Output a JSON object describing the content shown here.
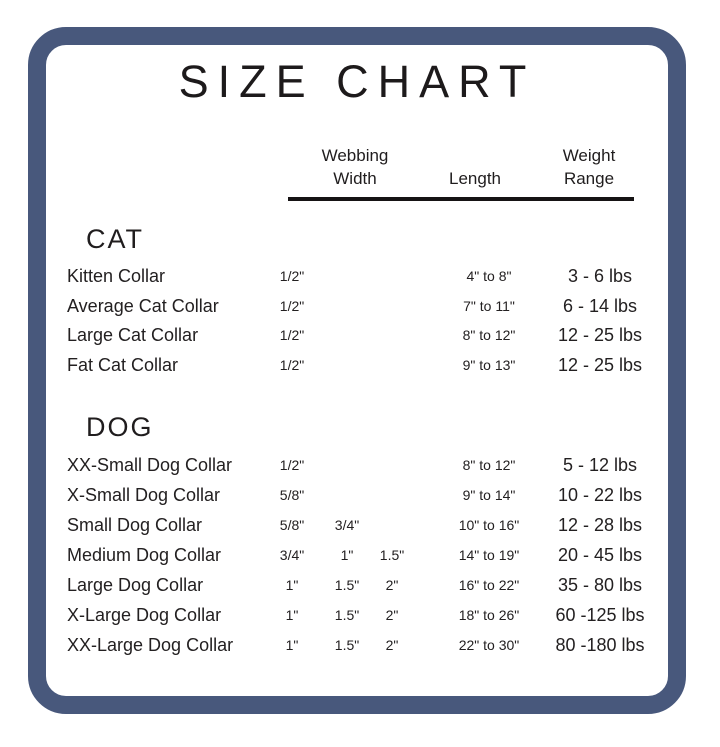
{
  "title": "SIZE CHART",
  "colors": {
    "border": "#48587C",
    "text": "#232021",
    "rule": "#161314"
  },
  "columns": {
    "webbing": {
      "line1": "Webbing",
      "line2": "Width"
    },
    "length": {
      "line1": "Length"
    },
    "weight": {
      "line1": "Weight",
      "line2": "Range"
    }
  },
  "sections": [
    {
      "name": "CAT",
      "rows": [
        {
          "name": "Kitten Collar",
          "webbing": [
            "1/2\""
          ],
          "length": "4\" to 8\"",
          "weight": "3 - 6 lbs"
        },
        {
          "name": "Average Cat Collar",
          "webbing": [
            "1/2\""
          ],
          "length": "7\" to 11\"",
          "weight": "6 - 14 lbs"
        },
        {
          "name": "Large Cat Collar",
          "webbing": [
            "1/2\""
          ],
          "length": "8\" to 12\"",
          "weight": "12 - 25 lbs"
        },
        {
          "name": "Fat Cat Collar",
          "webbing": [
            "1/2\""
          ],
          "length": "9\" to 13\"",
          "weight": "12 - 25 lbs"
        }
      ]
    },
    {
      "name": "DOG",
      "rows": [
        {
          "name": "XX-Small Dog Collar",
          "webbing": [
            "1/2\""
          ],
          "length": "8\" to 12\"",
          "weight": "5 - 12 lbs"
        },
        {
          "name": "X-Small Dog Collar",
          "webbing": [
            "5/8\""
          ],
          "length": "9\" to 14\"",
          "weight": "10 - 22 lbs"
        },
        {
          "name": "Small Dog Collar",
          "webbing": [
            "5/8\"",
            "3/4\""
          ],
          "length": "10\" to 16\"",
          "weight": "12 - 28 lbs"
        },
        {
          "name": "Medium Dog Collar",
          "webbing": [
            "3/4\"",
            "1\"",
            "1.5\""
          ],
          "length": "14\" to 19\"",
          "weight": "20 - 45 lbs"
        },
        {
          "name": "Large Dog Collar",
          "webbing": [
            "1\"",
            "1.5\"",
            "2\""
          ],
          "length": "16\" to 22\"",
          "weight": "35 - 80 lbs"
        },
        {
          "name": "X-Large Dog Collar",
          "webbing": [
            "1\"",
            "1.5\"",
            "2\""
          ],
          "length": "18\" to 26\"",
          "weight": "60 -125 lbs"
        },
        {
          "name": "XX-Large Dog Collar",
          "webbing": [
            "1\"",
            "1.5\"",
            "2\""
          ],
          "length": "22\" to 30\"",
          "weight": "80 -180 lbs"
        }
      ]
    }
  ]
}
